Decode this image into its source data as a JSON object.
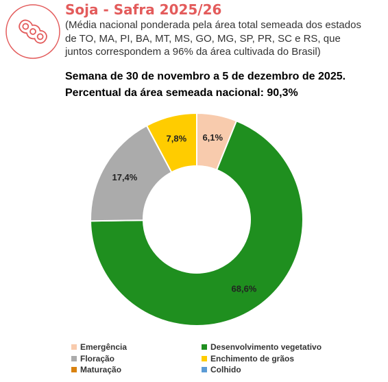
{
  "header": {
    "title": "Soja - Safra 2025/26",
    "subtitle": "(Média nacional ponderada pela área total semeada dos estados de TO, MA, PI, BA, MT, MS, GO, MG, SP, PR, SC e RS, que juntos correspondem a 96% da área cultivada do Brasil)",
    "week": "Semana de 30 de novembro a 5 de dezembro de 2025.",
    "national": "Percentual da área semeada nacional: 90,3%"
  },
  "logo": {
    "icon": "soybean-pod-icon",
    "color": "#e35b5b"
  },
  "chart_data": {
    "type": "pie",
    "variant": "donut",
    "title": "",
    "slices": [
      {
        "name": "Emergência",
        "value": 6.1,
        "label": "6,1%",
        "color": "#f8cbad"
      },
      {
        "name": "Desenvolvimento vegetativo",
        "value": 68.6,
        "label": "68,6%",
        "color": "#1f8f1f"
      },
      {
        "name": "Floração",
        "value": 17.4,
        "label": "17,4%",
        "color": "#ababab"
      },
      {
        "name": "Enchimento de grãos",
        "value": 7.8,
        "label": "7,8%",
        "color": "#ffcc00"
      },
      {
        "name": "Maturação",
        "value": 0,
        "label": "",
        "color": "#d9820f"
      },
      {
        "name": "Colhido",
        "value": 0,
        "label": "",
        "color": "#5b9bd5"
      }
    ],
    "legend_position": "bottom"
  }
}
